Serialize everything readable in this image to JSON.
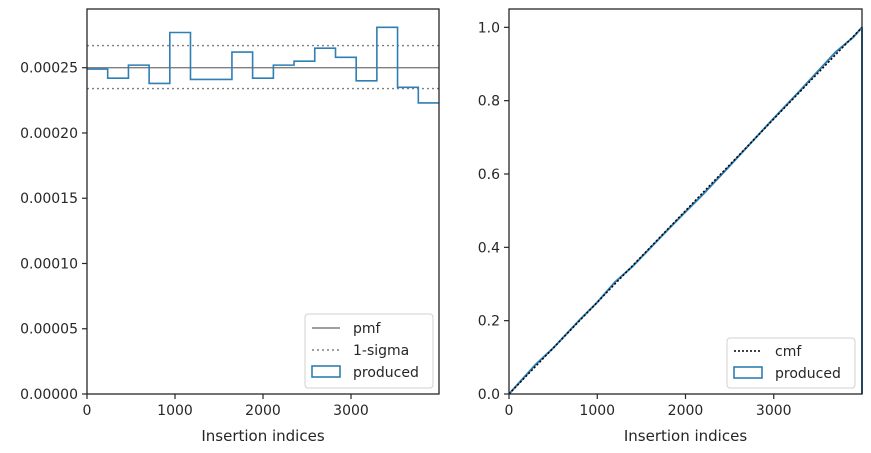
{
  "chart_data": [
    {
      "type": "step-histogram",
      "xlabel": "Insertion indices",
      "ylabel": "",
      "xlim": [
        0,
        4000
      ],
      "ylim": [
        0,
        0.000295
      ],
      "xticks": [
        0,
        1000,
        2000,
        3000
      ],
      "xtick_labels": [
        "0",
        "1000",
        "2000",
        "3000"
      ],
      "yticks": [
        0,
        5e-05,
        0.0001,
        0.00015,
        0.0002,
        0.00025
      ],
      "ytick_labels": [
        "0.00000",
        "0.00005",
        "0.00010",
        "0.00015",
        "0.00020",
        "0.00025"
      ],
      "pmf": 0.00025,
      "sigma_lower": 0.000234,
      "sigma_upper": 0.000267,
      "bin_edges": [
        0,
        235,
        471,
        706,
        941,
        1176,
        1412,
        1647,
        1882,
        2118,
        2353,
        2588,
        2824,
        3059,
        3294,
        3529,
        3765,
        4000
      ],
      "produced": [
        0.000249,
        0.000242,
        0.000252,
        0.000238,
        0.000277,
        0.000241,
        0.000241,
        0.000262,
        0.000242,
        0.000252,
        0.000255,
        0.000265,
        0.000258,
        0.00024,
        0.000281,
        0.000235,
        0.000223
      ],
      "legend": {
        "position": "lower-right",
        "entries": [
          {
            "label": "pmf",
            "style": "solid-gray"
          },
          {
            "label": "1-sigma",
            "style": "dotted-gray"
          },
          {
            "label": "produced",
            "style": "box-blue"
          }
        ]
      },
      "grid": false
    },
    {
      "type": "line",
      "xlabel": "Insertion indices",
      "ylabel": "",
      "xlim": [
        0,
        4000
      ],
      "ylim": [
        0,
        1.05
      ],
      "xticks": [
        0,
        1000,
        2000,
        3000
      ],
      "xtick_labels": [
        "0",
        "1000",
        "2000",
        "3000"
      ],
      "yticks": [
        0,
        0.2,
        0.4,
        0.6,
        0.8,
        1.0
      ],
      "ytick_labels": [
        "0.0",
        "0.2",
        "0.4",
        "0.6",
        "0.8",
        "1.0"
      ],
      "cmf": {
        "x": [
          0,
          4000
        ],
        "y": [
          0,
          1
        ]
      },
      "produced": {
        "x": [
          0,
          300,
          500,
          800,
          1000,
          1200,
          1400,
          1600,
          1800,
          2000,
          2200,
          2500,
          2800,
          3000,
          3300,
          3500,
          3700,
          3900,
          4000
        ],
        "y": [
          0,
          0.08,
          0.125,
          0.202,
          0.25,
          0.305,
          0.348,
          0.398,
          0.448,
          0.497,
          0.545,
          0.622,
          0.7,
          0.752,
          0.828,
          0.88,
          0.932,
          0.973,
          1.0
        ]
      },
      "legend": {
        "position": "lower-right",
        "entries": [
          {
            "label": "cmf",
            "style": "dotted-black"
          },
          {
            "label": "produced",
            "style": "box-blue"
          }
        ]
      },
      "grid": false
    }
  ],
  "colors": {
    "produced": "#2f7eb4",
    "pmf": "#7f7f7f",
    "sigma": "#7f7f7f",
    "cmf": "#000000",
    "axes": "#262626"
  }
}
